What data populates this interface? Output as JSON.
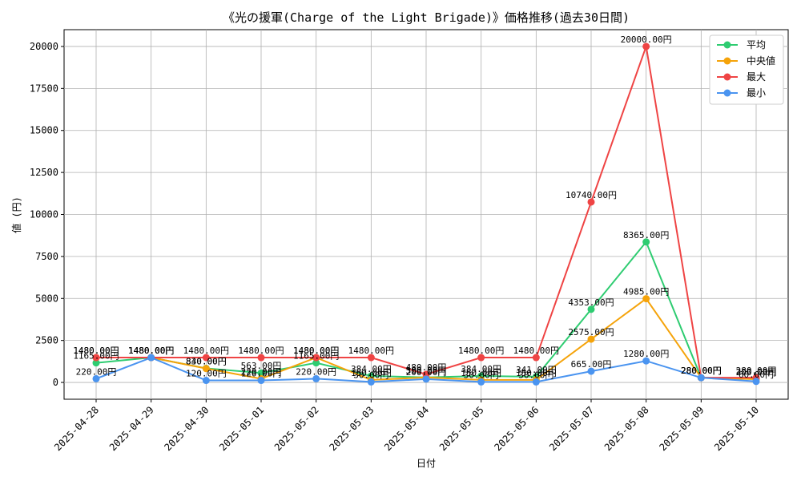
{
  "chart_data": {
    "type": "line",
    "title": "《光の援軍(Charge of the Light Brigade)》価格推移(過去30日間)",
    "xlabel": "日付",
    "ylabel": "値 (円)",
    "ylim": [
      -1000,
      21000
    ],
    "yticks": [
      0,
      2500,
      5000,
      7500,
      10000,
      12500,
      15000,
      17500,
      20000
    ],
    "grid": true,
    "legend_position": "top-right",
    "categories": [
      "2025-04-28",
      "2025-04-29",
      "2025-04-30",
      "2025-05-01",
      "2025-05-02",
      "2025-05-03",
      "2025-05-04",
      "2025-05-05",
      "2025-05-06",
      "2025-05-07",
      "2025-05-08",
      "2025-05-09",
      "2025-05-10"
    ],
    "series": [
      {
        "name": "平均",
        "color": "#2ecc71",
        "values": [
          1165,
          1480,
          840,
          563,
          1165,
          384,
          300,
          384,
          341,
          4353,
          8365,
          280,
          200
        ],
        "labels": [
          "1165.00円",
          "1480.00円",
          "840.00円",
          "563.00円",
          "1165.00円",
          "384.00円",
          "300.00円",
          "384.00円",
          "341.00円",
          "4353.00円",
          "8365.00円",
          "280.00円",
          "200.00円"
        ]
      },
      {
        "name": "中央値",
        "color": "#f5a30a",
        "values": [
          1480,
          1480,
          830,
          220,
          1480,
          150,
          300,
          150,
          150,
          2575,
          4985,
          280,
          200
        ],
        "labels": [
          "1480.00円",
          "1480.00円",
          "830.00円",
          "220.00円",
          "1480.00円",
          "150.00円",
          "300.00円",
          "150.00円",
          "150.00円",
          "2575.00円",
          "4985.00円",
          "280.00円",
          "200.00円"
        ]
      },
      {
        "name": "最大",
        "color": "#ef4444",
        "values": [
          1480,
          1480,
          1480,
          1480,
          1480,
          1480,
          480,
          1480,
          1480,
          10740,
          20000,
          280,
          280
        ],
        "labels": [
          "1480.00円",
          "1480.00円",
          "1480.00円",
          "1480.00円",
          "1480.00円",
          "1480.00円",
          "480.00円",
          "1480.00円",
          "1480.00円",
          "10740.00円",
          "20000.00円",
          "280.00円",
          "280.00円"
        ]
      },
      {
        "name": "最小",
        "color": "#4a94f0",
        "values": [
          220,
          1480,
          120,
          120,
          220,
          30,
          200,
          30,
          30,
          665,
          1280,
          280,
          60
        ],
        "labels": [
          "220.00円",
          "1480.00円",
          "120.00円",
          "120.00円",
          "220.00円",
          "30.00円",
          "200.00円",
          "30.00円",
          "30.00円",
          "665.00円",
          "1280.00円",
          "280.00円",
          "60.00円"
        ]
      }
    ]
  }
}
